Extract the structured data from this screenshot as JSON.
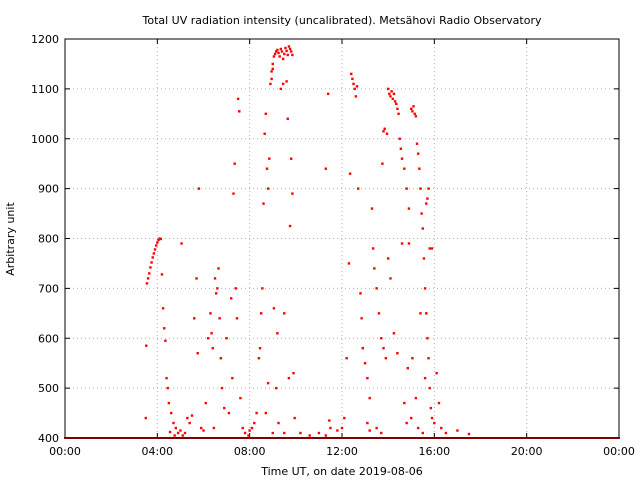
{
  "chart_data": {
    "type": "scatter",
    "title": "Total UV radiation intensity (uncalibrated). Metsähovi Radio Observatory",
    "xlabel": "Time UT, on date 2019-08-06",
    "ylabel": "Arbitrary unit",
    "xlim": [
      0,
      24
    ],
    "ylim": [
      400,
      1200
    ],
    "x_ticks": [
      0,
      4,
      8,
      12,
      16,
      20,
      24
    ],
    "x_tick_labels": [
      "00:00",
      "04:00",
      "08:00",
      "12:00",
      "16:00",
      "20:00",
      "00:00"
    ],
    "y_ticks": [
      400,
      500,
      600,
      700,
      800,
      900,
      1000,
      1100,
      1200
    ],
    "y_tick_labels": [
      "400",
      "500",
      "600",
      "700",
      "800",
      "900",
      "1000",
      "1100",
      "1200"
    ],
    "grid": true,
    "marker_color": "#ff0000",
    "series": [
      {
        "points": [
          [
            3.55,
            710
          ],
          [
            3.6,
            720
          ],
          [
            3.65,
            730
          ],
          [
            3.7,
            742
          ],
          [
            3.75,
            752
          ],
          [
            3.8,
            762
          ],
          [
            3.85,
            770
          ],
          [
            3.9,
            778
          ],
          [
            3.95,
            786
          ],
          [
            4.0,
            792
          ],
          [
            4.05,
            797
          ],
          [
            4.1,
            800
          ],
          [
            4.15,
            799
          ],
          [
            3.52,
            585
          ],
          [
            3.5,
            440
          ],
          [
            4.2,
            728
          ],
          [
            4.25,
            660
          ],
          [
            4.3,
            620
          ],
          [
            4.35,
            595
          ],
          [
            4.4,
            520
          ],
          [
            4.45,
            500
          ],
          [
            4.5,
            470
          ],
          [
            4.6,
            450
          ],
          [
            4.7,
            430
          ],
          [
            4.8,
            420
          ],
          [
            4.9,
            410
          ],
          [
            5.0,
            415
          ],
          [
            5.05,
            790
          ],
          [
            4.55,
            412
          ],
          [
            4.75,
            405
          ],
          [
            5.1,
            405
          ],
          [
            5.4,
            430
          ],
          [
            5.5,
            445
          ],
          [
            5.6,
            640
          ],
          [
            5.7,
            720
          ],
          [
            5.75,
            570
          ],
          [
            5.8,
            900
          ],
          [
            5.9,
            420
          ],
          [
            6.0,
            415
          ],
          [
            6.2,
            600
          ],
          [
            6.3,
            650
          ],
          [
            6.35,
            610
          ],
          [
            6.4,
            580
          ],
          [
            6.5,
            720
          ],
          [
            6.55,
            690
          ],
          [
            6.6,
            700
          ],
          [
            6.65,
            740
          ],
          [
            6.7,
            640
          ],
          [
            6.75,
            560
          ],
          [
            6.8,
            500
          ],
          [
            6.9,
            460
          ],
          [
            7.0,
            600
          ],
          [
            7.1,
            450
          ],
          [
            7.2,
            680
          ],
          [
            7.25,
            520
          ],
          [
            7.3,
            890
          ],
          [
            7.35,
            950
          ],
          [
            7.4,
            700
          ],
          [
            7.45,
            640
          ],
          [
            7.5,
            1080
          ],
          [
            7.55,
            1055
          ],
          [
            7.6,
            480
          ],
          [
            7.7,
            420
          ],
          [
            7.8,
            410
          ],
          [
            6.1,
            470
          ],
          [
            6.45,
            420
          ],
          [
            5.3,
            440
          ],
          [
            5.2,
            410
          ],
          [
            7.95,
            405
          ],
          [
            8.0,
            415
          ],
          [
            8.1,
            420
          ],
          [
            8.2,
            430
          ],
          [
            8.3,
            450
          ],
          [
            8.4,
            560
          ],
          [
            8.45,
            580
          ],
          [
            8.5,
            650
          ],
          [
            8.55,
            700
          ],
          [
            8.6,
            870
          ],
          [
            8.65,
            1010
          ],
          [
            8.7,
            1050
          ],
          [
            8.75,
            940
          ],
          [
            8.8,
            900
          ],
          [
            8.85,
            960
          ],
          [
            8.9,
            1110
          ],
          [
            8.95,
            1135
          ],
          [
            9.0,
            1150
          ],
          [
            9.05,
            1165
          ],
          [
            9.1,
            1170
          ],
          [
            9.15,
            1175
          ],
          [
            9.2,
            1178
          ],
          [
            9.25,
            1172
          ],
          [
            9.3,
            1165
          ],
          [
            9.35,
            1180
          ],
          [
            9.4,
            1175
          ],
          [
            9.45,
            1160
          ],
          [
            9.5,
            1170
          ],
          [
            9.55,
            1182
          ],
          [
            9.6,
            1176
          ],
          [
            9.65,
            1168
          ],
          [
            9.7,
            1185
          ],
          [
            9.75,
            1180
          ],
          [
            9.8,
            1175
          ],
          [
            9.85,
            1168
          ],
          [
            8.95,
            1120
          ],
          [
            9.0,
            1140
          ],
          [
            9.05,
            660
          ],
          [
            9.15,
            500
          ],
          [
            9.2,
            610
          ],
          [
            9.25,
            430
          ],
          [
            9.35,
            1100
          ],
          [
            9.45,
            1110
          ],
          [
            9.5,
            650
          ],
          [
            9.6,
            1115
          ],
          [
            9.65,
            1040
          ],
          [
            9.75,
            825
          ],
          [
            9.8,
            960
          ],
          [
            9.85,
            890
          ],
          [
            9.9,
            530
          ],
          [
            9.95,
            440
          ],
          [
            9.7,
            520
          ],
          [
            9.5,
            410
          ],
          [
            8.7,
            450
          ],
          [
            8.8,
            510
          ],
          [
            9.0,
            410
          ],
          [
            10.2,
            410
          ],
          [
            10.6,
            405
          ],
          [
            11.0,
            410
          ],
          [
            11.3,
            940
          ],
          [
            11.4,
            1090
          ],
          [
            11.45,
            435
          ],
          [
            11.5,
            420
          ],
          [
            11.3,
            405
          ],
          [
            11.8,
            415
          ],
          [
            12.0,
            420
          ],
          [
            12.1,
            440
          ],
          [
            12.2,
            560
          ],
          [
            12.3,
            750
          ],
          [
            12.35,
            930
          ],
          [
            12.4,
            1130
          ],
          [
            12.45,
            1120
          ],
          [
            12.5,
            1110
          ],
          [
            12.55,
            1100
          ],
          [
            12.6,
            1085
          ],
          [
            12.65,
            1105
          ],
          [
            12.7,
            900
          ],
          [
            12.8,
            690
          ],
          [
            12.85,
            640
          ],
          [
            12.9,
            580
          ],
          [
            13.0,
            550
          ],
          [
            13.1,
            520
          ],
          [
            13.2,
            480
          ],
          [
            13.3,
            860
          ],
          [
            13.35,
            780
          ],
          [
            13.4,
            740
          ],
          [
            13.5,
            700
          ],
          [
            13.6,
            650
          ],
          [
            13.7,
            600
          ],
          [
            13.8,
            580
          ],
          [
            13.9,
            560
          ],
          [
            14.0,
            1100
          ],
          [
            14.05,
            1090
          ],
          [
            14.1,
            1085
          ],
          [
            14.15,
            1095
          ],
          [
            14.2,
            1080
          ],
          [
            14.25,
            1090
          ],
          [
            14.3,
            1075
          ],
          [
            14.35,
            1070
          ],
          [
            14.4,
            1060
          ],
          [
            14.45,
            1050
          ],
          [
            14.5,
            1000
          ],
          [
            14.55,
            980
          ],
          [
            14.6,
            960
          ],
          [
            14.7,
            940
          ],
          [
            14.8,
            900
          ],
          [
            14.9,
            860
          ],
          [
            15.0,
            1060
          ],
          [
            15.05,
            1055
          ],
          [
            15.1,
            1065
          ],
          [
            15.15,
            1050
          ],
          [
            15.2,
            1045
          ],
          [
            15.25,
            990
          ],
          [
            15.3,
            970
          ],
          [
            15.35,
            940
          ],
          [
            15.4,
            900
          ],
          [
            15.45,
            850
          ],
          [
            15.5,
            820
          ],
          [
            15.55,
            760
          ],
          [
            15.6,
            700
          ],
          [
            15.65,
            650
          ],
          [
            15.7,
            600
          ],
          [
            15.75,
            560
          ],
          [
            15.8,
            500
          ],
          [
            15.85,
            460
          ],
          [
            15.9,
            440
          ],
          [
            16.0,
            430
          ],
          [
            16.1,
            530
          ],
          [
            16.2,
            470
          ],
          [
            16.3,
            420
          ],
          [
            16.5,
            410
          ],
          [
            17.0,
            415
          ],
          [
            17.5,
            408
          ],
          [
            13.85,
            1020
          ],
          [
            13.8,
            1015
          ],
          [
            14.6,
            790
          ],
          [
            14.9,
            790
          ],
          [
            13.75,
            950
          ],
          [
            13.95,
            1010
          ],
          [
            14.0,
            760
          ],
          [
            14.1,
            720
          ],
          [
            14.25,
            610
          ],
          [
            14.4,
            570
          ],
          [
            14.7,
            470
          ],
          [
            14.85,
            540
          ],
          [
            15.05,
            560
          ],
          [
            15.2,
            480
          ],
          [
            15.4,
            650
          ],
          [
            15.6,
            520
          ],
          [
            15.8,
            780
          ],
          [
            15.9,
            780
          ],
          [
            15.7,
            880
          ],
          [
            15.65,
            870
          ],
          [
            15.75,
            900
          ],
          [
            13.1,
            430
          ],
          [
            13.2,
            415
          ],
          [
            13.5,
            420
          ],
          [
            13.7,
            410
          ],
          [
            14.8,
            430
          ],
          [
            15.0,
            440
          ],
          [
            15.3,
            420
          ],
          [
            15.5,
            410
          ]
        ]
      }
    ]
  }
}
